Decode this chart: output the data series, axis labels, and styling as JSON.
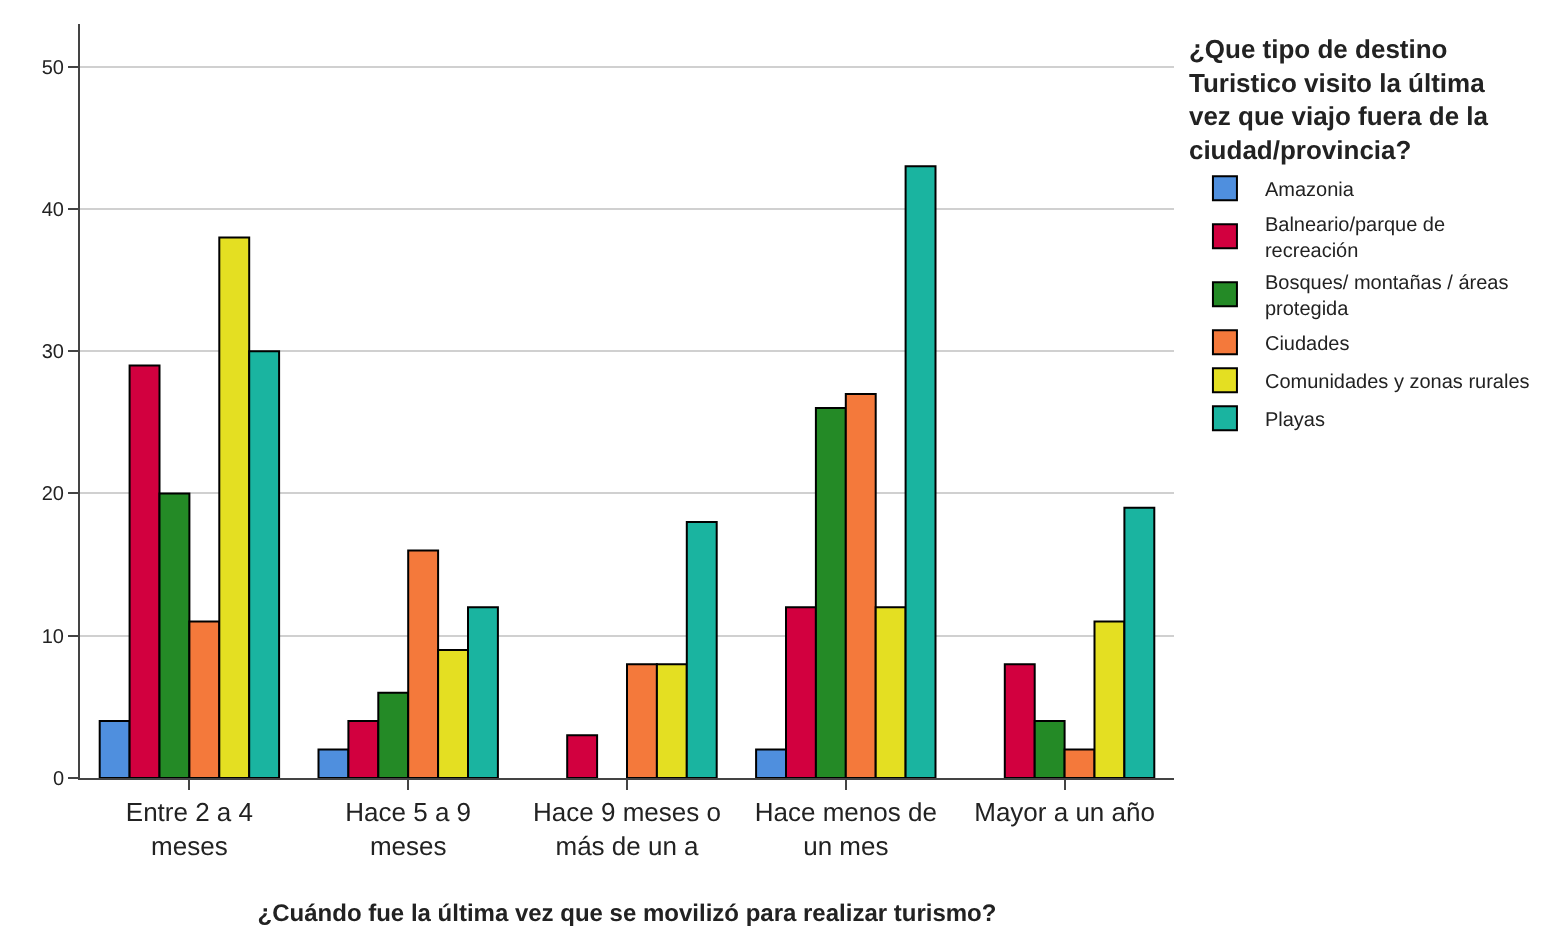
{
  "chart_data": {
    "type": "bar",
    "xlabel": "¿Cuándo fue la última vez que se movilizó para realizar turismo?",
    "legend_title": "¿Que tipo de destino Turistico visito la última vez que viajo fuera de la ciudad/provincia?",
    "categories": [
      "Entre 2 a 4 meses",
      "Hace 5 a 9 meses",
      "Hace 9 meses o más de un a",
      "Hace menos de un mes",
      "Mayor a un año"
    ],
    "series": [
      {
        "name": "Amazonia",
        "color": "#4f8fde",
        "values": [
          4,
          2,
          null,
          2,
          null
        ]
      },
      {
        "name": "Balneario/parque de recreación",
        "color": "#d2003f",
        "values": [
          29,
          4,
          3,
          12,
          8
        ]
      },
      {
        "name": "Bosques/ montañas / áreas protegida",
        "color": "#248a26",
        "values": [
          20,
          6,
          null,
          26,
          4
        ]
      },
      {
        "name": "Ciudades",
        "color": "#f4793b",
        "values": [
          11,
          16,
          8,
          27,
          2
        ]
      },
      {
        "name": "Comunidades y zonas rurales",
        "color": "#e4df22",
        "values": [
          38,
          9,
          8,
          12,
          11
        ]
      },
      {
        "name": "Playas",
        "color": "#1ab4a0",
        "values": [
          30,
          12,
          18,
          43,
          19
        ]
      }
    ],
    "ylim": [
      0,
      53
    ],
    "yticks": [
      0,
      10,
      20,
      30,
      40,
      50
    ],
    "grid": "y",
    "legend": "right"
  }
}
